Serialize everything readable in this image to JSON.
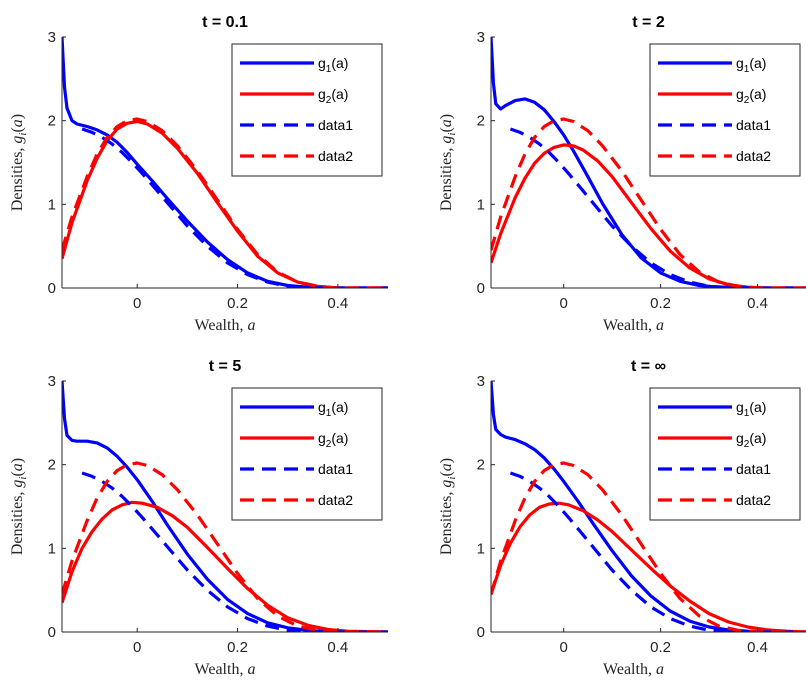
{
  "colors": {
    "g1": "#0000ff",
    "g2": "#ff0000",
    "axis": "#262626"
  },
  "legend": {
    "placement": "top-right",
    "entries": [
      {
        "text": "g",
        "sub": "1",
        "tail": "(a)",
        "color": "#0000ff",
        "style": "solid"
      },
      {
        "text": "g",
        "sub": "2",
        "tail": "(a)",
        "color": "#ff0000",
        "style": "solid"
      },
      {
        "text": "data1",
        "sub": "",
        "tail": "",
        "color": "#0000ff",
        "style": "dashed"
      },
      {
        "text": "data2",
        "sub": "",
        "tail": "",
        "color": "#ff0000",
        "style": "dashed"
      }
    ]
  },
  "chart_data": [
    {
      "type": "line",
      "title": "t = 0.1",
      "xlabel": "Wealth, a",
      "ylabel": "Densities, g_i(a)",
      "xlim": [
        -0.15,
        0.5
      ],
      "ylim": [
        0,
        3
      ],
      "xticks": [
        0,
        0.2,
        0.4
      ],
      "xticklabels": [
        "0",
        "0.2",
        "0.4"
      ],
      "yticks": [
        0,
        1,
        2,
        3
      ],
      "yticklabels": [
        "0",
        "1",
        "2",
        "3"
      ],
      "grid": false,
      "series": [
        {
          "name": "g1(a)",
          "style": "solid",
          "color": "#0000ff",
          "x": [
            -0.15,
            -0.145,
            -0.14,
            -0.13,
            -0.12,
            -0.1,
            -0.08,
            -0.06,
            -0.04,
            -0.02,
            0.0,
            0.03,
            0.06,
            0.1,
            0.14,
            0.18,
            0.22,
            0.26,
            0.3,
            0.35,
            0.4,
            0.5
          ],
          "y": [
            3.0,
            2.4,
            2.15,
            2.0,
            1.96,
            1.93,
            1.89,
            1.83,
            1.74,
            1.62,
            1.48,
            1.28,
            1.07,
            0.8,
            0.55,
            0.34,
            0.18,
            0.08,
            0.03,
            0.005,
            0.0,
            0.0
          ]
        },
        {
          "name": "g2(a)",
          "style": "solid",
          "color": "#ff0000",
          "x": [
            -0.15,
            -0.13,
            -0.1,
            -0.08,
            -0.06,
            -0.04,
            -0.02,
            0.0,
            0.02,
            0.05,
            0.08,
            0.12,
            0.16,
            0.2,
            0.24,
            0.28,
            0.32,
            0.36,
            0.4,
            0.5
          ],
          "y": [
            0.35,
            0.78,
            1.28,
            1.55,
            1.76,
            1.9,
            1.97,
            1.99,
            1.96,
            1.85,
            1.67,
            1.37,
            1.02,
            0.68,
            0.38,
            0.18,
            0.07,
            0.02,
            0.0,
            0.0
          ]
        },
        {
          "name": "data1",
          "style": "dashed",
          "color": "#0000ff",
          "x": [
            -0.11,
            -0.09,
            -0.07,
            -0.05,
            -0.03,
            -0.01,
            0.01,
            0.04,
            0.07,
            0.1,
            0.14,
            0.18,
            0.22,
            0.26,
            0.3,
            0.35,
            0.4,
            0.5
          ],
          "y": [
            1.9,
            1.86,
            1.8,
            1.72,
            1.62,
            1.5,
            1.37,
            1.16,
            0.95,
            0.74,
            0.5,
            0.3,
            0.16,
            0.07,
            0.02,
            0.005,
            0.0,
            0.0
          ]
        },
        {
          "name": "data2",
          "style": "dashed",
          "color": "#ff0000",
          "x": [
            -0.15,
            -0.13,
            -0.1,
            -0.08,
            -0.06,
            -0.04,
            -0.02,
            0.0,
            0.02,
            0.05,
            0.08,
            0.12,
            0.16,
            0.2,
            0.24,
            0.28,
            0.32,
            0.36,
            0.4,
            0.5
          ],
          "y": [
            0.45,
            0.85,
            1.33,
            1.6,
            1.8,
            1.93,
            2.0,
            2.02,
            1.99,
            1.88,
            1.7,
            1.4,
            1.05,
            0.7,
            0.4,
            0.19,
            0.07,
            0.02,
            0.0,
            0.0
          ]
        }
      ]
    },
    {
      "type": "line",
      "title": "t = 2",
      "xlabel": "Wealth, a",
      "ylabel": "Densities, g_i(a)",
      "xlim": [
        -0.15,
        0.5
      ],
      "ylim": [
        0,
        3
      ],
      "xticks": [
        0,
        0.2,
        0.4
      ],
      "xticklabels": [
        "0",
        "0.2",
        "0.4"
      ],
      "yticks": [
        0,
        1,
        2,
        3
      ],
      "yticklabels": [
        "0",
        "1",
        "2",
        "3"
      ],
      "grid": false,
      "series": [
        {
          "name": "g1(a)",
          "style": "solid",
          "color": "#0000ff",
          "x": [
            -0.15,
            -0.145,
            -0.14,
            -0.13,
            -0.12,
            -0.1,
            -0.08,
            -0.06,
            -0.04,
            -0.02,
            0.0,
            0.02,
            0.05,
            0.08,
            0.12,
            0.16,
            0.2,
            0.24,
            0.28,
            0.32,
            0.36,
            0.4,
            0.5
          ],
          "y": [
            3.0,
            2.45,
            2.2,
            2.14,
            2.18,
            2.24,
            2.26,
            2.22,
            2.13,
            1.99,
            1.83,
            1.64,
            1.33,
            1.01,
            0.64,
            0.36,
            0.18,
            0.08,
            0.03,
            0.01,
            0.0,
            0.0,
            0.0
          ]
        },
        {
          "name": "g2(a)",
          "style": "solid",
          "color": "#ff0000",
          "x": [
            -0.15,
            -0.13,
            -0.1,
            -0.08,
            -0.06,
            -0.04,
            -0.02,
            0.0,
            0.02,
            0.04,
            0.07,
            0.1,
            0.14,
            0.18,
            0.22,
            0.26,
            0.3,
            0.34,
            0.38,
            0.42,
            0.5
          ],
          "y": [
            0.3,
            0.65,
            1.08,
            1.31,
            1.49,
            1.61,
            1.68,
            1.71,
            1.7,
            1.65,
            1.52,
            1.33,
            1.02,
            0.71,
            0.44,
            0.24,
            0.11,
            0.04,
            0.01,
            0.0,
            0.0
          ]
        },
        {
          "name": "data1",
          "style": "dashed",
          "color": "#0000ff",
          "x": [
            -0.11,
            -0.09,
            -0.07,
            -0.05,
            -0.03,
            -0.01,
            0.01,
            0.04,
            0.07,
            0.1,
            0.14,
            0.18,
            0.22,
            0.26,
            0.3,
            0.35,
            0.4,
            0.5
          ],
          "y": [
            1.9,
            1.86,
            1.8,
            1.72,
            1.62,
            1.5,
            1.37,
            1.16,
            0.95,
            0.74,
            0.5,
            0.3,
            0.16,
            0.07,
            0.02,
            0.005,
            0.0,
            0.0
          ]
        },
        {
          "name": "data2",
          "style": "dashed",
          "color": "#ff0000",
          "x": [
            -0.15,
            -0.13,
            -0.1,
            -0.08,
            -0.06,
            -0.04,
            -0.02,
            0.0,
            0.02,
            0.05,
            0.08,
            0.12,
            0.16,
            0.2,
            0.24,
            0.28,
            0.32,
            0.36,
            0.4,
            0.5
          ],
          "y": [
            0.45,
            0.85,
            1.33,
            1.6,
            1.8,
            1.93,
            2.0,
            2.02,
            1.99,
            1.88,
            1.7,
            1.4,
            1.05,
            0.7,
            0.4,
            0.19,
            0.07,
            0.02,
            0.0,
            0.0
          ]
        }
      ]
    },
    {
      "type": "line",
      "title": "t = 5",
      "xlabel": "Wealth, a",
      "ylabel": "Densities, g_i(a)",
      "xlim": [
        -0.15,
        0.5
      ],
      "ylim": [
        0,
        3
      ],
      "xticks": [
        0,
        0.2,
        0.4
      ],
      "xticklabels": [
        "0",
        "0.2",
        "0.4"
      ],
      "yticks": [
        0,
        1,
        2,
        3
      ],
      "yticklabels": [
        "0",
        "1",
        "2",
        "3"
      ],
      "grid": false,
      "series": [
        {
          "name": "g1(a)",
          "style": "solid",
          "color": "#0000ff",
          "x": [
            -0.15,
            -0.145,
            -0.14,
            -0.13,
            -0.12,
            -0.1,
            -0.08,
            -0.06,
            -0.04,
            -0.02,
            0.0,
            0.03,
            0.06,
            0.1,
            0.14,
            0.18,
            0.22,
            0.26,
            0.3,
            0.34,
            0.38,
            0.42,
            0.5
          ],
          "y": [
            3.0,
            2.55,
            2.35,
            2.29,
            2.28,
            2.28,
            2.26,
            2.2,
            2.1,
            1.97,
            1.82,
            1.56,
            1.28,
            0.93,
            0.63,
            0.39,
            0.22,
            0.11,
            0.05,
            0.02,
            0.005,
            0.0,
            0.0
          ]
        },
        {
          "name": "g2(a)",
          "style": "solid",
          "color": "#ff0000",
          "x": [
            -0.15,
            -0.13,
            -0.11,
            -0.09,
            -0.07,
            -0.05,
            -0.03,
            -0.01,
            0.01,
            0.04,
            0.07,
            0.1,
            0.14,
            0.18,
            0.22,
            0.26,
            0.3,
            0.34,
            0.38,
            0.42,
            0.5
          ],
          "y": [
            0.35,
            0.72,
            1.0,
            1.2,
            1.35,
            1.46,
            1.52,
            1.55,
            1.54,
            1.49,
            1.39,
            1.25,
            1.01,
            0.76,
            0.52,
            0.32,
            0.17,
            0.08,
            0.03,
            0.01,
            0.0
          ]
        },
        {
          "name": "data1",
          "style": "dashed",
          "color": "#0000ff",
          "x": [
            -0.11,
            -0.09,
            -0.07,
            -0.05,
            -0.03,
            -0.01,
            0.01,
            0.04,
            0.07,
            0.1,
            0.14,
            0.18,
            0.22,
            0.26,
            0.3,
            0.35,
            0.4,
            0.5
          ],
          "y": [
            1.9,
            1.86,
            1.8,
            1.72,
            1.62,
            1.5,
            1.37,
            1.16,
            0.95,
            0.74,
            0.5,
            0.3,
            0.16,
            0.07,
            0.02,
            0.005,
            0.0,
            0.0
          ]
        },
        {
          "name": "data2",
          "style": "dashed",
          "color": "#ff0000",
          "x": [
            -0.15,
            -0.13,
            -0.1,
            -0.08,
            -0.06,
            -0.04,
            -0.02,
            0.0,
            0.02,
            0.05,
            0.08,
            0.12,
            0.16,
            0.2,
            0.24,
            0.28,
            0.32,
            0.36,
            0.4,
            0.5
          ],
          "y": [
            0.45,
            0.85,
            1.33,
            1.6,
            1.8,
            1.93,
            2.0,
            2.02,
            1.99,
            1.88,
            1.7,
            1.4,
            1.05,
            0.7,
            0.4,
            0.19,
            0.07,
            0.02,
            0.0,
            0.0
          ]
        }
      ]
    },
    {
      "type": "line",
      "title": "t = ∞",
      "xlabel": "Wealth, a",
      "ylabel": "Densities, g_i(a)",
      "xlim": [
        -0.15,
        0.5
      ],
      "ylim": [
        0,
        3
      ],
      "xticks": [
        0,
        0.2,
        0.4
      ],
      "xticklabels": [
        "0",
        "0.2",
        "0.4"
      ],
      "yticks": [
        0,
        1,
        2,
        3
      ],
      "yticklabels": [
        "0",
        "1",
        "2",
        "3"
      ],
      "grid": false,
      "series": [
        {
          "name": "g1(a)",
          "style": "solid",
          "color": "#0000ff",
          "x": [
            -0.15,
            -0.145,
            -0.14,
            -0.13,
            -0.12,
            -0.1,
            -0.08,
            -0.06,
            -0.04,
            -0.02,
            0.0,
            0.03,
            0.06,
            0.1,
            0.14,
            0.18,
            0.22,
            0.26,
            0.3,
            0.34,
            0.38,
            0.42,
            0.5
          ],
          "y": [
            3.0,
            2.6,
            2.42,
            2.36,
            2.33,
            2.3,
            2.25,
            2.18,
            2.08,
            1.95,
            1.8,
            1.56,
            1.3,
            0.97,
            0.67,
            0.43,
            0.25,
            0.13,
            0.06,
            0.025,
            0.01,
            0.0,
            0.0
          ]
        },
        {
          "name": "g2(a)",
          "style": "solid",
          "color": "#ff0000",
          "x": [
            -0.15,
            -0.13,
            -0.11,
            -0.09,
            -0.07,
            -0.05,
            -0.03,
            -0.01,
            0.01,
            0.04,
            0.07,
            0.1,
            0.14,
            0.18,
            0.22,
            0.26,
            0.3,
            0.34,
            0.38,
            0.42,
            0.46,
            0.5
          ],
          "y": [
            0.45,
            0.8,
            1.06,
            1.26,
            1.4,
            1.49,
            1.53,
            1.54,
            1.52,
            1.45,
            1.34,
            1.2,
            0.98,
            0.76,
            0.55,
            0.37,
            0.22,
            0.12,
            0.06,
            0.025,
            0.01,
            0.0
          ]
        },
        {
          "name": "data1",
          "style": "dashed",
          "color": "#0000ff",
          "x": [
            -0.11,
            -0.09,
            -0.07,
            -0.05,
            -0.03,
            -0.01,
            0.01,
            0.04,
            0.07,
            0.1,
            0.14,
            0.18,
            0.22,
            0.26,
            0.3,
            0.35,
            0.4,
            0.5
          ],
          "y": [
            1.9,
            1.86,
            1.8,
            1.72,
            1.62,
            1.5,
            1.37,
            1.16,
            0.95,
            0.74,
            0.5,
            0.3,
            0.16,
            0.07,
            0.02,
            0.005,
            0.0,
            0.0
          ]
        },
        {
          "name": "data2",
          "style": "dashed",
          "color": "#ff0000",
          "x": [
            -0.15,
            -0.13,
            -0.1,
            -0.08,
            -0.06,
            -0.04,
            -0.02,
            0.0,
            0.02,
            0.05,
            0.08,
            0.12,
            0.16,
            0.2,
            0.24,
            0.28,
            0.32,
            0.36,
            0.4,
            0.5
          ],
          "y": [
            0.45,
            0.85,
            1.33,
            1.6,
            1.8,
            1.93,
            2.0,
            2.02,
            1.99,
            1.88,
            1.7,
            1.4,
            1.05,
            0.7,
            0.4,
            0.19,
            0.07,
            0.02,
            0.0,
            0.0
          ]
        }
      ]
    }
  ]
}
